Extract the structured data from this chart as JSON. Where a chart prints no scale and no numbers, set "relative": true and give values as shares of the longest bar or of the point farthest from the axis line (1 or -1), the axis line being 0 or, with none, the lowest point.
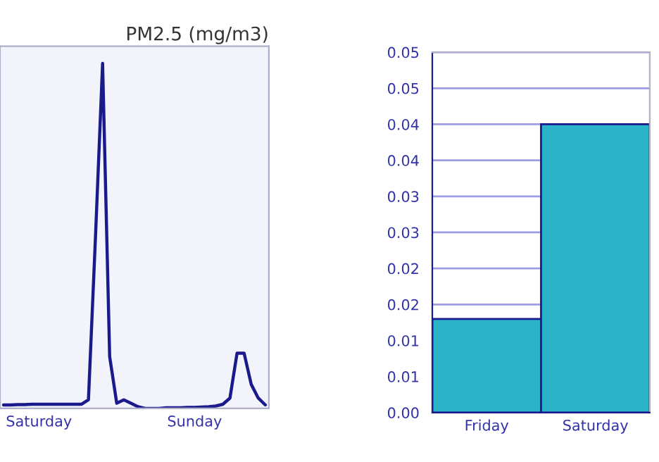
{
  "chart_data": [
    {
      "type": "line",
      "title": "PM2.5 (mg/m3)",
      "relative": true,
      "legend": false,
      "categories": [
        null,
        null,
        null,
        null,
        null,
        "Saturday",
        null,
        null,
        null,
        null,
        null,
        null,
        null,
        null,
        null,
        null,
        null,
        null,
        null,
        null,
        null,
        null,
        null,
        null,
        null,
        null,
        null,
        "Sunday",
        null,
        null,
        null,
        null,
        null,
        null,
        null,
        null,
        null,
        null
      ],
      "series": [
        {
          "color": "#1a1a8c",
          "values": [
            0.01,
            0.01,
            0.011,
            0.011,
            0.012,
            0.012,
            0.012,
            0.012,
            0.012,
            0.012,
            0.012,
            0.012,
            0.025,
            0.5,
            1.0,
            0.15,
            0.015,
            0.025,
            0.015,
            0.005,
            0.0,
            0.0,
            0.0,
            0.002,
            0.002,
            0.002,
            0.003,
            0.003,
            0.004,
            0.005,
            0.007,
            0.012,
            0.03,
            0.16,
            0.16,
            0.07,
            0.03,
            0.01
          ]
        }
      ]
    },
    {
      "type": "bar",
      "categories": [
        "Friday",
        "Saturday"
      ],
      "grid": "y",
      "legend": false,
      "ylim": [
        0,
        0.05
      ],
      "yticks": [
        {
          "value": 0,
          "label": "0.00"
        },
        {
          "value": 0.005,
          "label": "0.01"
        },
        {
          "value": 0.01,
          "label": "0.01"
        },
        {
          "value": 0.015,
          "label": "0.02"
        },
        {
          "value": 0.02,
          "label": "0.02"
        },
        {
          "value": 0.025,
          "label": "0.03"
        },
        {
          "value": 0.03,
          "label": "0.03"
        },
        {
          "value": 0.035,
          "label": "0.04"
        },
        {
          "value": 0.04,
          "label": "0.04"
        },
        {
          "value": 0.045,
          "label": "0.05"
        },
        {
          "value": 0.05,
          "label": "0.05"
        }
      ],
      "series": [
        {
          "color": "#2ab3c9",
          "values": [
            0.013,
            0.04
          ]
        }
      ]
    }
  ]
}
